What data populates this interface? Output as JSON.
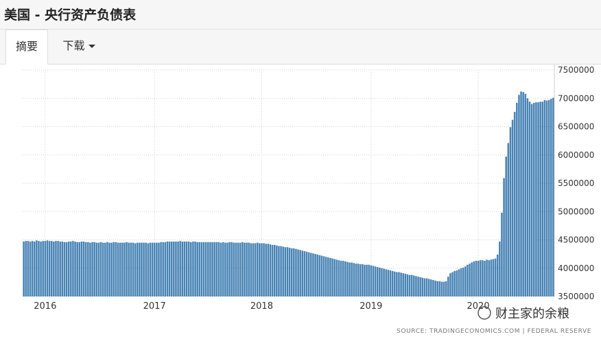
{
  "page": {
    "title": "美国 - 央行资产负债表",
    "tabs": [
      "摘要",
      "下载"
    ],
    "source": "SOURCE: TRADINGECONOMICS.COM | FEDERAL RESERVE",
    "watermark": "财主家的余粮"
  },
  "chart_data": {
    "type": "bar",
    "categories": [
      null,
      null,
      null,
      null,
      null,
      null,
      null,
      null,
      null,
      null,
      "2016",
      null,
      null,
      null,
      null,
      null,
      null,
      null,
      null,
      null,
      null,
      null,
      null,
      null,
      null,
      null,
      null,
      null,
      null,
      null,
      null,
      null,
      null,
      null,
      null,
      null,
      null,
      null,
      null,
      null,
      null,
      null,
      null,
      null,
      null,
      null,
      null,
      null,
      null,
      null,
      null,
      null,
      null,
      null,
      null,
      null,
      null,
      null,
      null,
      null,
      null,
      "2017",
      null,
      null,
      null,
      null,
      null,
      null,
      null,
      null,
      null,
      null,
      null,
      null,
      null,
      null,
      null,
      null,
      null,
      null,
      null,
      null,
      null,
      null,
      null,
      null,
      null,
      null,
      null,
      null,
      null,
      null,
      null,
      null,
      null,
      null,
      null,
      null,
      null,
      null,
      null,
      null,
      null,
      null,
      null,
      null,
      null,
      null,
      null,
      null,
      null,
      "2018",
      null,
      null,
      null,
      null,
      null,
      null,
      null,
      null,
      null,
      null,
      null,
      null,
      null,
      null,
      null,
      null,
      null,
      null,
      null,
      null,
      null,
      null,
      null,
      null,
      null,
      null,
      null,
      null,
      null,
      null,
      null,
      null,
      null,
      null,
      null,
      null,
      null,
      null,
      null,
      null,
      null,
      null,
      null,
      null,
      null,
      null,
      null,
      null,
      null,
      null,
      "2019",
      null,
      null,
      null,
      null,
      null,
      null,
      null,
      null,
      null,
      null,
      null,
      null,
      null,
      null,
      null,
      null,
      null,
      null,
      null,
      null,
      null,
      null,
      null,
      null,
      null,
      null,
      null,
      null,
      null,
      null,
      null,
      null,
      null,
      null,
      null,
      null,
      null,
      null,
      null,
      null,
      null,
      null,
      null,
      null,
      null,
      null,
      null,
      null,
      null,
      "2020",
      null,
      null,
      null,
      null,
      null,
      null,
      null,
      null,
      null,
      null,
      null,
      null,
      null,
      null,
      null,
      null,
      null,
      null,
      null,
      null,
      null,
      null,
      null,
      null,
      null,
      null,
      null,
      null,
      null,
      null,
      null,
      null,
      null,
      null,
      null
    ],
    "values": [
      4470000,
      4480000,
      4480000,
      4470000,
      4480000,
      4470000,
      4490000,
      4480000,
      4470000,
      4480000,
      4480000,
      4490000,
      4480000,
      4480000,
      4470000,
      4480000,
      4480000,
      4470000,
      4470000,
      4460000,
      4460000,
      4470000,
      4470000,
      4480000,
      4470000,
      4460000,
      4460000,
      4470000,
      4470000,
      4460000,
      4460000,
      4450000,
      4460000,
      4460000,
      4450000,
      4450000,
      4460000,
      4450000,
      4450000,
      4460000,
      4450000,
      4450000,
      4460000,
      4460000,
      4450000,
      4450000,
      4450000,
      4450000,
      4460000,
      4450000,
      4450000,
      4450000,
      4440000,
      4450000,
      4450000,
      4450000,
      4450000,
      4450000,
      4440000,
      4450000,
      4450000,
      4450000,
      4450000,
      4450000,
      4460000,
      4460000,
      4460000,
      4470000,
      4470000,
      4470000,
      4470000,
      4470000,
      4470000,
      4480000,
      4470000,
      4470000,
      4470000,
      4470000,
      4460000,
      4470000,
      4470000,
      4460000,
      4460000,
      4460000,
      4460000,
      4460000,
      4460000,
      4460000,
      4460000,
      4460000,
      4460000,
      4460000,
      4450000,
      4460000,
      4450000,
      4450000,
      4460000,
      4460000,
      4450000,
      4450000,
      4450000,
      4450000,
      4460000,
      4450000,
      4450000,
      4450000,
      4440000,
      4440000,
      4440000,
      4450000,
      4440000,
      4440000,
      4440000,
      4430000,
      4430000,
      4420000,
      4410000,
      4410000,
      4400000,
      4390000,
      4390000,
      4380000,
      4370000,
      4370000,
      4360000,
      4350000,
      4350000,
      4340000,
      4330000,
      4320000,
      4310000,
      4300000,
      4290000,
      4280000,
      4270000,
      4260000,
      4250000,
      4240000,
      4230000,
      4220000,
      4210000,
      4200000,
      4190000,
      4180000,
      4170000,
      4160000,
      4150000,
      4140000,
      4130000,
      4130000,
      4120000,
      4110000,
      4100000,
      4100000,
      4090000,
      4080000,
      4080000,
      4070000,
      4070000,
      4060000,
      4060000,
      4060000,
      4050000,
      4040000,
      4030000,
      4020000,
      4010000,
      4000000,
      3990000,
      3980000,
      3970000,
      3960000,
      3950000,
      3940000,
      3930000,
      3930000,
      3920000,
      3910000,
      3900000,
      3890000,
      3880000,
      3880000,
      3870000,
      3860000,
      3850000,
      3840000,
      3830000,
      3820000,
      3820000,
      3810000,
      3800000,
      3790000,
      3780000,
      3770000,
      3770000,
      3760000,
      3760000,
      3770000,
      3850000,
      3910000,
      3930000,
      3950000,
      3960000,
      3980000,
      4000000,
      4010000,
      4030000,
      4060000,
      4080000,
      4100000,
      4120000,
      4130000,
      4130000,
      4140000,
      4140000,
      4130000,
      4150000,
      4140000,
      4150000,
      4160000,
      4170000,
      4240000,
      4470000,
      4980000,
      5590000,
      5970000,
      6210000,
      6490000,
      6620000,
      6760000,
      6920000,
      7060000,
      7120000,
      7110000,
      7080000,
      7000000,
      6940000,
      6900000,
      6920000,
      6930000,
      6930000,
      6940000,
      6940000,
      6970000,
      6960000,
      6970000,
      6990000,
      7010000
    ],
    "color": "#4682b4",
    "ylim": [
      3500000,
      7500000
    ],
    "yticks": [
      3500000,
      4000000,
      4500000,
      5000000,
      5500000,
      6000000,
      6500000,
      7000000,
      7500000
    ],
    "grid": true
  }
}
